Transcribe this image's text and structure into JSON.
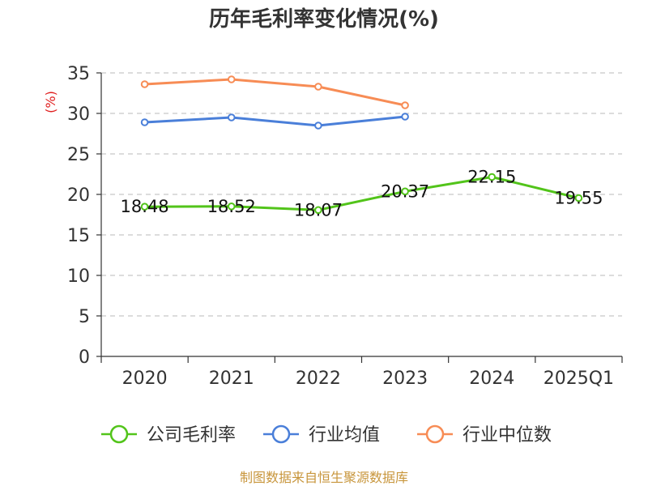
{
  "chart_data": {
    "type": "line",
    "title": "历年毛利率变化情况(%)",
    "ylabel": "(%)",
    "xlabel": "",
    "categories": [
      "2020",
      "2021",
      "2022",
      "2023",
      "2024",
      "2025Q1"
    ],
    "ylim": [
      0,
      35
    ],
    "yticks": [
      0,
      5,
      10,
      15,
      20,
      25,
      30,
      35
    ],
    "grid": true,
    "legend_position": "bottom",
    "series": [
      {
        "name": "公司毛利率",
        "color": "#52c41a",
        "values": [
          18.48,
          18.52,
          18.07,
          20.37,
          22.15,
          19.55
        ],
        "labels": [
          "18.48",
          "18.52",
          "18.07",
          "20.37",
          "22.15",
          "19.55"
        ]
      },
      {
        "name": "行业均值",
        "color": "#4a7fd9",
        "values": [
          28.9,
          29.5,
          28.5,
          29.6,
          null,
          null
        ]
      },
      {
        "name": "行业中位数",
        "color": "#f78c55",
        "values": [
          33.6,
          34.2,
          33.3,
          31.0,
          null,
          null
        ]
      }
    ]
  },
  "footer": {
    "source": "制图数据来自恒生聚源数据库",
    "source_color": "#c8963c"
  },
  "ylabel_color": "#e02020"
}
